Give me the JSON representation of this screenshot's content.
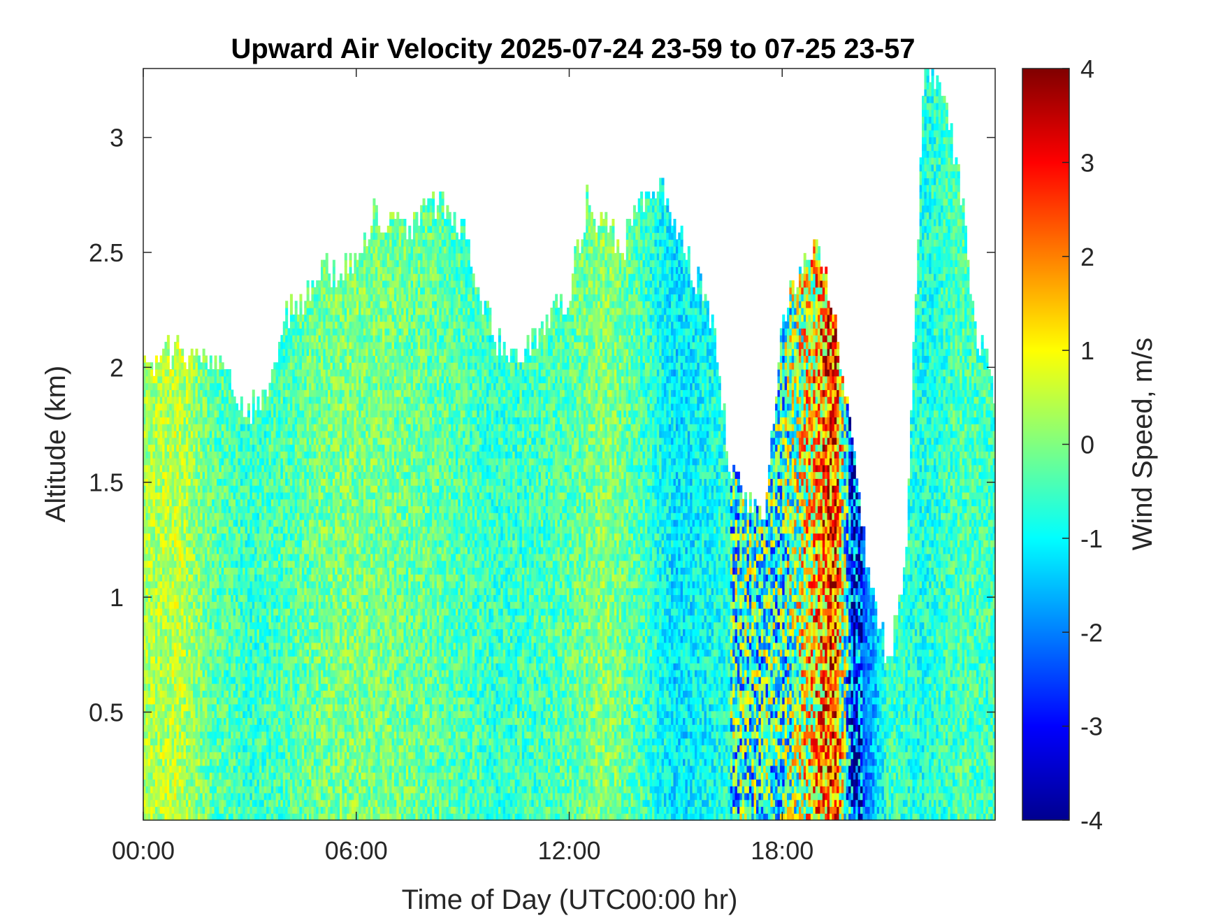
{
  "chart_data": {
    "type": "heatmap",
    "title": "Upward Air Velocity 2025-07-24 23-59 to 07-25 23-57",
    "xlabel": "Time of Day (UTC00:00 hr)",
    "ylabel": "Altitude (km)",
    "colorbar_label": "Wind Speed, m/s",
    "colormap": "jet",
    "xlim_hours": [
      0,
      24
    ],
    "ylim_km": [
      0.03,
      3.3
    ],
    "clim": [
      -4,
      4
    ],
    "x_ticks": [
      {
        "label": "00:00",
        "value": 0
      },
      {
        "label": "06:00",
        "value": 6
      },
      {
        "label": "12:00",
        "value": 12
      },
      {
        "label": "18:00",
        "value": 18
      }
    ],
    "y_ticks": [
      {
        "label": "0.5",
        "value": 0.5
      },
      {
        "label": "1",
        "value": 1
      },
      {
        "label": "1.5",
        "value": 1.5
      },
      {
        "label": "2",
        "value": 2
      },
      {
        "label": "2.5",
        "value": 2.5
      },
      {
        "label": "3",
        "value": 3
      }
    ],
    "colorbar_ticks": [
      {
        "label": "4",
        "value": 4
      },
      {
        "label": "3",
        "value": 3
      },
      {
        "label": "2",
        "value": 2
      },
      {
        "label": "1",
        "value": 1
      },
      {
        "label": "0",
        "value": 0
      },
      {
        "label": "-1",
        "value": -1
      },
      {
        "label": "-2",
        "value": -2
      },
      {
        "label": "-3",
        "value": -3
      },
      {
        "label": "-4",
        "value": -4
      }
    ],
    "data_top_altitude_km": {
      "hours": [
        0,
        0.5,
        1,
        1.5,
        2,
        2.5,
        3,
        3.5,
        4,
        4.5,
        5,
        5.5,
        6,
        6.5,
        7,
        7.5,
        8,
        8.5,
        9,
        9.5,
        10,
        10.5,
        11,
        11.5,
        12,
        12.5,
        13,
        13.5,
        14,
        14.5,
        15,
        15.5,
        16,
        16.5,
        17,
        17.5,
        18,
        18.5,
        19,
        19.5,
        20,
        20.5,
        21,
        21.5,
        22,
        22.5,
        23,
        23.5,
        24
      ],
      "top_km": [
        2.0,
        2.05,
        2.05,
        2.0,
        2.0,
        1.9,
        1.8,
        1.9,
        2.2,
        2.3,
        2.4,
        2.4,
        2.5,
        2.65,
        2.6,
        2.6,
        2.7,
        2.7,
        2.6,
        2.3,
        2.1,
        2.0,
        2.1,
        2.2,
        2.3,
        2.7,
        2.6,
        2.5,
        2.7,
        2.8,
        2.6,
        2.4,
        2.2,
        1.6,
        1.4,
        1.3,
        2.2,
        2.4,
        2.5,
        2.2,
        1.6,
        1.0,
        0.7,
        1.2,
        3.3,
        3.2,
        2.8,
        2.1,
        1.9
      ]
    },
    "mean_velocity_m_s": {
      "hours": [
        0,
        1,
        2,
        3,
        4,
        5,
        6,
        7,
        8,
        9,
        10,
        11,
        12,
        13,
        14,
        15,
        16,
        17,
        18,
        19,
        19.5,
        20,
        21,
        22,
        23,
        24
      ],
      "values": [
        0.3,
        0.5,
        -0.3,
        -0.6,
        -0.4,
        -0.1,
        0.0,
        -0.1,
        -0.2,
        -0.4,
        -0.6,
        -0.5,
        -0.3,
        0.1,
        -0.4,
        -1.2,
        -0.9,
        -0.6,
        -0.7,
        1.5,
        2.5,
        -3.0,
        -0.5,
        -0.8,
        -0.4,
        -0.5
      ]
    }
  }
}
